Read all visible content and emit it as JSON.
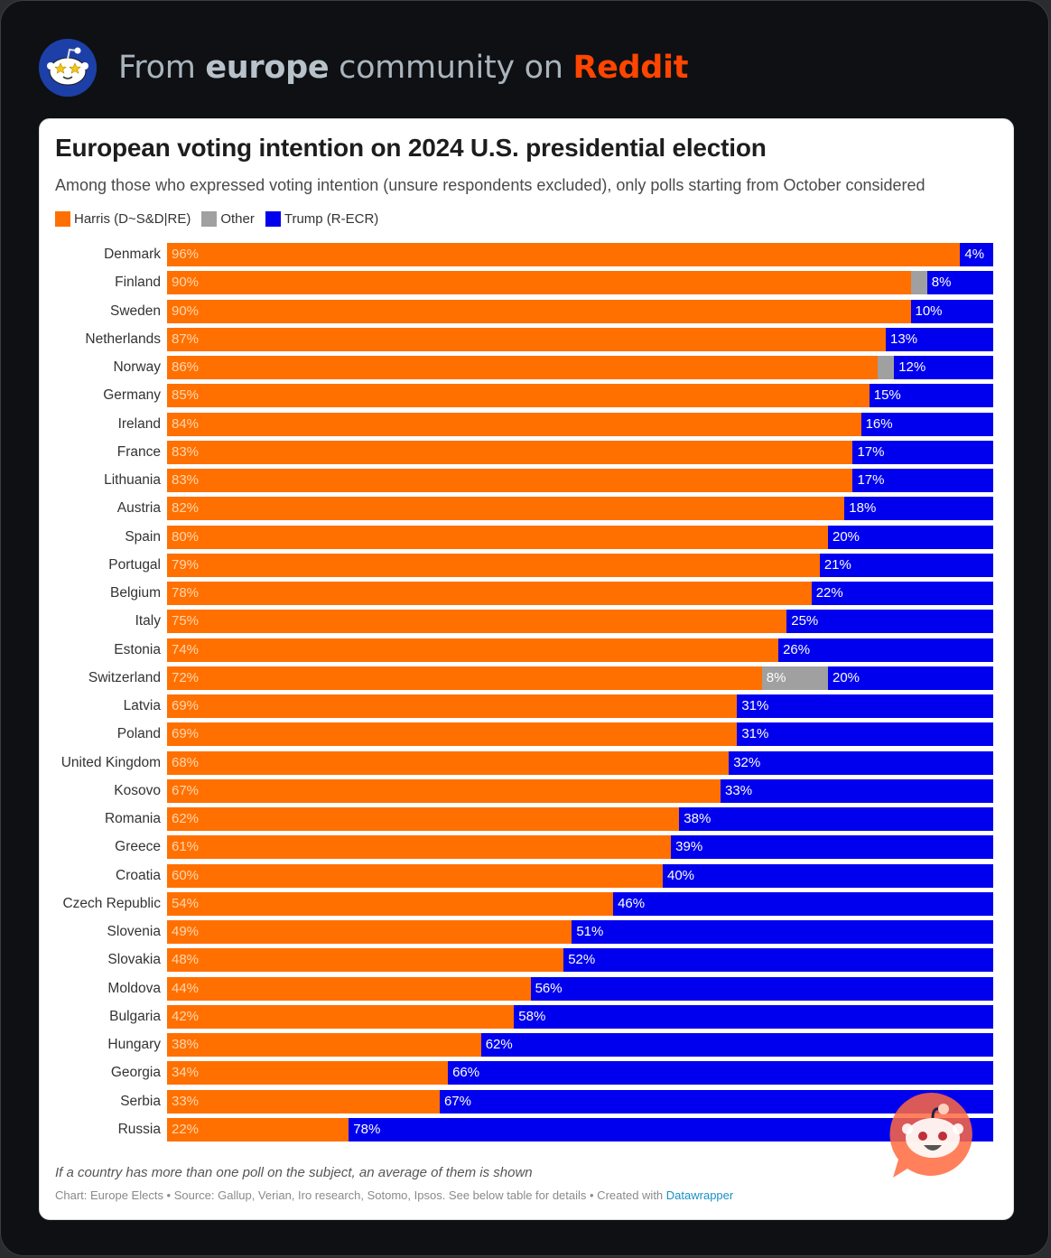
{
  "header": {
    "prefix": "From ",
    "community": "europe",
    "middle": " community on ",
    "brand": "Reddit",
    "brand_color": "#ff4500",
    "avatar_icon": "snoo-star-eyes-icon"
  },
  "footer": {
    "note": "If a country has more than one poll on the subject, an average of them is shown",
    "credit_prefix": "Chart: Europe Elects • Source: Gallup, Verian, Iro research, Sotomo, Ipsos. See below table for details • Created with ",
    "credit_link": "Datawrapper"
  },
  "overlay_icon": "reddit-answers-snoo-icon",
  "chart_data": {
    "type": "bar",
    "orientation": "horizontal",
    "stacked": true,
    "title": "European voting intention on 2024 U.S. presidential election",
    "subtitle": "Among those who expressed voting intention (unsure respondents excluded), only polls starting from October considered",
    "xlabel": "",
    "ylabel": "",
    "xlim": [
      0,
      100
    ],
    "grid": false,
    "legend_position": "top-left",
    "legend": [
      {
        "name": "Harris (D~S&D|RE)",
        "color": "#ff7000"
      },
      {
        "name": "Other",
        "color": "#a0a0a0"
      },
      {
        "name": "Trump (R-ECR)",
        "color": "#0000ee"
      }
    ],
    "categories": [
      "Denmark",
      "Finland",
      "Sweden",
      "Netherlands",
      "Norway",
      "Germany",
      "Ireland",
      "France",
      "Lithuania",
      "Austria",
      "Spain",
      "Portugal",
      "Belgium",
      "Italy",
      "Estonia",
      "Switzerland",
      "Latvia",
      "Poland",
      "United Kingdom",
      "Kosovo",
      "Romania",
      "Greece",
      "Croatia",
      "Czech Republic",
      "Slovenia",
      "Slovakia",
      "Moldova",
      "Bulgaria",
      "Hungary",
      "Georgia",
      "Serbia",
      "Russia"
    ],
    "series": [
      {
        "name": "Harris (D~S&D|RE)",
        "values": [
          96,
          90,
          90,
          87,
          86,
          85,
          84,
          83,
          83,
          82,
          80,
          79,
          78,
          75,
          74,
          72,
          69,
          69,
          68,
          67,
          62,
          61,
          60,
          54,
          49,
          48,
          44,
          42,
          38,
          34,
          33,
          22
        ]
      },
      {
        "name": "Other",
        "values": [
          0,
          2,
          0,
          0,
          2,
          0,
          0,
          0,
          0,
          0,
          0,
          0,
          0,
          0,
          0,
          8,
          0,
          0,
          0,
          0,
          0,
          0,
          0,
          0,
          0,
          0,
          0,
          0,
          0,
          0,
          0,
          0
        ]
      },
      {
        "name": "Trump (R-ECR)",
        "values": [
          4,
          8,
          10,
          13,
          12,
          15,
          16,
          17,
          17,
          18,
          20,
          21,
          22,
          25,
          26,
          20,
          31,
          31,
          32,
          33,
          38,
          39,
          40,
          46,
          51,
          52,
          56,
          58,
          62,
          66,
          67,
          78
        ]
      }
    ],
    "data_labels": {
      "Harris (D~S&D|RE)": "all",
      "Other": "shown only for Switzerland (8%)",
      "Trump (R-ECR)": "all"
    }
  }
}
